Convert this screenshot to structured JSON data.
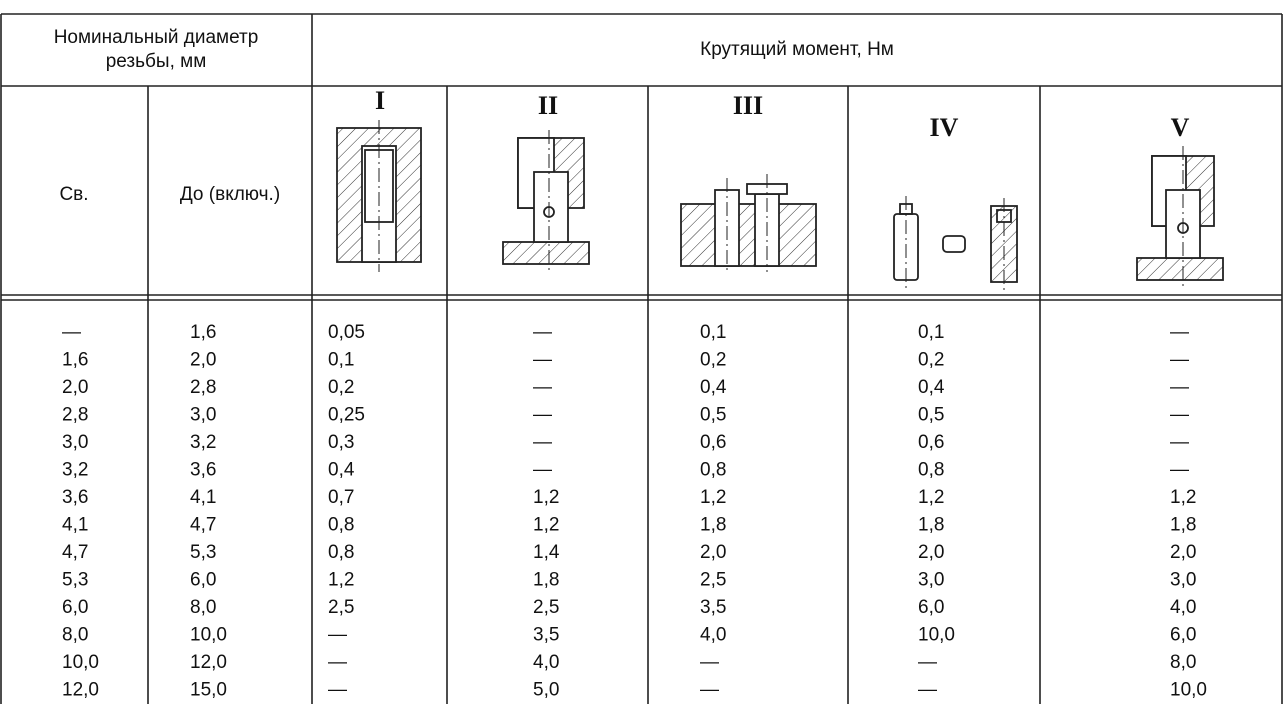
{
  "header": {
    "diameter_lines": [
      "Номинальный диаметр",
      "резьбы, мм"
    ],
    "torque": "Крутящий момент, Нм",
    "columns": [
      "Св.",
      "До (включ.)",
      "I",
      "II",
      "III",
      "IV",
      "V"
    ]
  },
  "table": {
    "rows": [
      [
        "—",
        "1,6",
        "0,05",
        "—",
        "0,1",
        "0,1",
        "—"
      ],
      [
        "1,6",
        "2,0",
        "0,1",
        "—",
        "0,2",
        "0,2",
        "—"
      ],
      [
        "2,0",
        "2,8",
        "0,2",
        "—",
        "0,4",
        "0,4",
        "—"
      ],
      [
        "2,8",
        "3,0",
        "0,25",
        "—",
        "0,5",
        "0,5",
        "—"
      ],
      [
        "3,0",
        "3,2",
        "0,3",
        "—",
        "0,6",
        "0,6",
        "—"
      ],
      [
        "3,2",
        "3,6",
        "0,4",
        "—",
        "0,8",
        "0,8",
        "—"
      ],
      [
        "3,6",
        "4,1",
        "0,7",
        "1,2",
        "1,2",
        "1,2",
        "1,2"
      ],
      [
        "4,1",
        "4,7",
        "0,8",
        "1,2",
        "1,8",
        "1,8",
        "1,8"
      ],
      [
        "4,7",
        "5,3",
        "0,8",
        "1,4",
        "2,0",
        "2,0",
        "2,0"
      ],
      [
        "5,3",
        "6,0",
        "1,2",
        "1,8",
        "2,5",
        "3,0",
        "3,0"
      ],
      [
        "6,0",
        "8,0",
        "2,5",
        "2,5",
        "3,5",
        "6,0",
        "4,0"
      ],
      [
        "8,0",
        "10,0",
        "—",
        "3,5",
        "4,0",
        "10,0",
        "6,0"
      ],
      [
        "10,0",
        "12,0",
        "—",
        "4,0",
        "—",
        "—",
        "8,0"
      ],
      [
        "12,0",
        "15,0",
        "—",
        "5,0",
        "—",
        "—",
        "10,0"
      ]
    ]
  }
}
